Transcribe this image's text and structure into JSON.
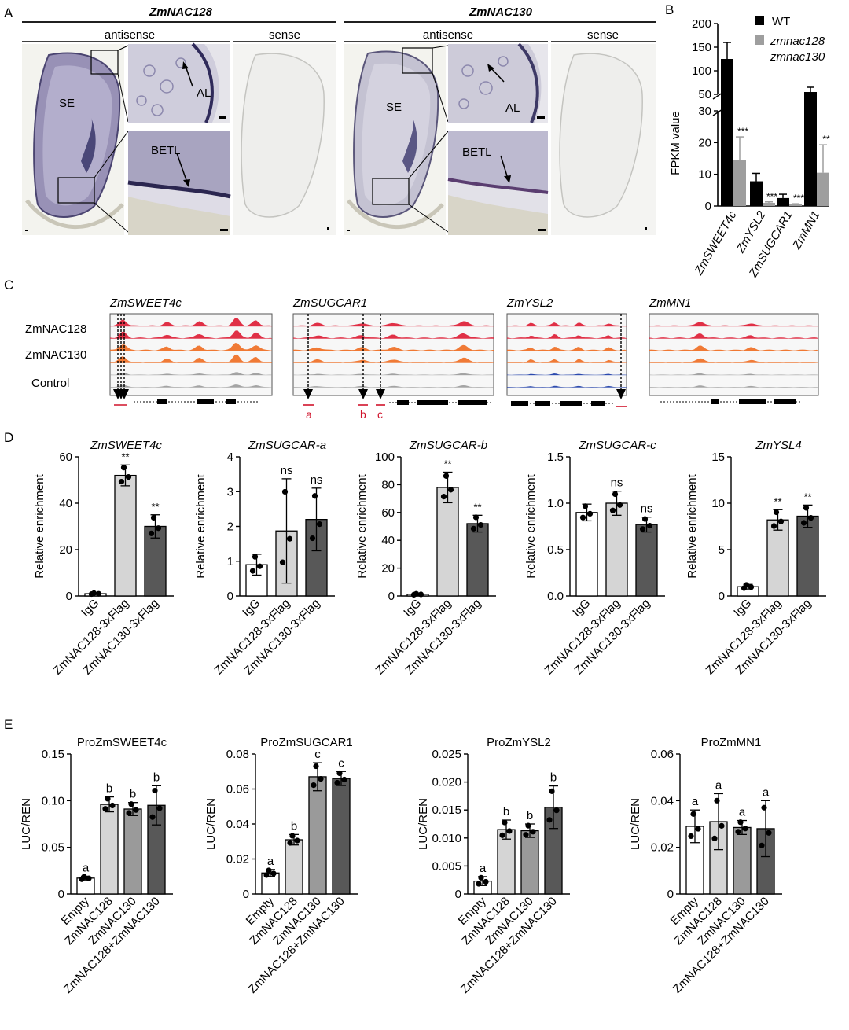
{
  "panelA": {
    "label": "A",
    "groups": [
      {
        "gene": "ZmNAC128",
        "antisense": "antisense",
        "sense": "sense"
      },
      {
        "gene": "ZmNAC130",
        "antisense": "antisense",
        "sense": "sense"
      }
    ],
    "tissue_labels": {
      "se": "SE",
      "al": "AL",
      "betl": "BETL"
    }
  },
  "panelB": {
    "label": "B",
    "ylabel": "FPKM value",
    "legend": [
      {
        "name": "WT",
        "color": "#000000"
      },
      {
        "name": "zmnac128",
        "color": "#9e9e9e"
      },
      {
        "name": "zmnac130",
        "color": ""
      }
    ],
    "chart_data": {
      "type": "bar",
      "categories": [
        "ZmSWEET4c",
        "ZmYSL2",
        "ZmSUGCAR1",
        "ZmMN1"
      ],
      "series": [
        {
          "name": "WT",
          "values": [
            125,
            7.8,
            2.5,
            55
          ],
          "errors": [
            35,
            2.5,
            1.2,
            10
          ]
        },
        {
          "name": "zmnac128 zmnac130",
          "values": [
            14.5,
            1.0,
            0.5,
            10.5
          ],
          "errors": [
            7.3,
            0.3,
            0.2,
            8.8
          ]
        }
      ],
      "significance": [
        "***",
        "***",
        "***",
        "**"
      ],
      "yticks_lower": [
        0,
        10,
        20,
        30
      ],
      "yticks_upper": [
        50,
        100,
        150,
        200
      ],
      "axis_break": [
        30,
        40
      ]
    }
  },
  "panelC": {
    "label": "C",
    "genes": [
      "ZmSWEET4c",
      "ZmSUGCAR1",
      "ZmYSL2",
      "ZmMN1"
    ],
    "tracks": [
      "ZmNAC128",
      "ZmNAC130",
      "Control"
    ],
    "site_labels": [
      "a",
      "b",
      "c"
    ]
  },
  "panelD": {
    "label": "D",
    "ylabel": "Relative enrichment",
    "chart_data": [
      {
        "type": "bar",
        "title": "ZmSWEET4c",
        "categories": [
          "IgG",
          "ZmNAC128-3xFlag",
          "ZmNAC130-3xFlag"
        ],
        "values": [
          1.0,
          52.0,
          30.0
        ],
        "errors": [
          0.3,
          4.5,
          5.0
        ],
        "sig": [
          "",
          "**",
          "**"
        ],
        "ylim": [
          0,
          60
        ],
        "yticks": [
          "0",
          "20",
          "40",
          "60"
        ]
      },
      {
        "type": "bar",
        "title": "ZmSUGCAR-a",
        "categories": [
          "IgG",
          "ZmNAC128-3xFlag",
          "ZmNAC130-3xFlag"
        ],
        "values": [
          0.9,
          1.87,
          2.2
        ],
        "errors": [
          0.3,
          1.5,
          0.9
        ],
        "sig": [
          "",
          "ns",
          "ns"
        ],
        "ylim": [
          0,
          4
        ],
        "yticks": [
          "0",
          "1",
          "2",
          "3",
          "4"
        ]
      },
      {
        "type": "bar",
        "title": "ZmSUGCAR-b",
        "categories": [
          "IgG",
          "ZmNAC128-3xFlag",
          "ZmNAC130-3xFlag"
        ],
        "values": [
          1.2,
          78.0,
          52.0
        ],
        "errors": [
          0.5,
          11.0,
          6.0
        ],
        "sig": [
          "",
          "**",
          "**"
        ],
        "ylim": [
          0,
          100
        ],
        "yticks": [
          "0",
          "20",
          "40",
          "60",
          "80",
          "100"
        ]
      },
      {
        "type": "bar",
        "title": "ZmSUGCAR-c",
        "categories": [
          "IgG",
          "ZmNAC128-3xFlag",
          "ZmNAC130-3xFlag"
        ],
        "values": [
          0.9,
          1.0,
          0.77
        ],
        "errors": [
          0.09,
          0.13,
          0.08
        ],
        "sig": [
          "",
          "ns",
          "ns"
        ],
        "ylim": [
          0,
          1.5
        ],
        "yticks": [
          "0.0",
          "0.5",
          "1.0",
          "1.5"
        ]
      },
      {
        "type": "bar",
        "title": "ZmYSL4",
        "categories": [
          "IgG",
          "ZmNAC128-3xFlag",
          "ZmNAC130-3xFlag"
        ],
        "values": [
          1.0,
          8.2,
          8.6
        ],
        "errors": [
          0.25,
          1.1,
          1.2
        ],
        "sig": [
          "",
          "**",
          "**"
        ],
        "ylim": [
          0,
          15
        ],
        "yticks": [
          "0",
          "5",
          "10",
          "15"
        ]
      }
    ]
  },
  "panelE": {
    "label": "E",
    "ylabel": "LUC/REN",
    "chart_data": [
      {
        "type": "bar",
        "title": "ProZmSWEET4c",
        "categories": [
          "Empty",
          "ZmNAC128",
          "ZmNAC130",
          "ZmNAC128+ZmNAC130"
        ],
        "values": [
          0.017,
          0.096,
          0.091,
          0.095
        ],
        "errors": [
          0.002,
          0.008,
          0.007,
          0.021
        ],
        "letters": [
          "a",
          "b",
          "b",
          "b"
        ],
        "ylim": [
          0,
          0.15
        ],
        "yticks": [
          "0",
          "0.05",
          "0.10",
          "0.15"
        ]
      },
      {
        "type": "bar",
        "title": "ProZmSUGCAR1",
        "categories": [
          "Empty",
          "ZmNAC128",
          "ZmNAC130",
          "ZmNAC128+ZmNAC130"
        ],
        "values": [
          0.012,
          0.031,
          0.067,
          0.066
        ],
        "errors": [
          0.002,
          0.003,
          0.008,
          0.004
        ],
        "letters": [
          "a",
          "b",
          "c",
          "c"
        ],
        "ylim": [
          0,
          0.08
        ],
        "yticks": [
          "0",
          "0.02",
          "0.04",
          "0.06",
          "0.08"
        ]
      },
      {
        "type": "bar",
        "title": "ProZmYSL2",
        "categories": [
          "Empty",
          "ZmNAC128",
          "ZmNAC130",
          "ZmNAC128+ZmNAC130"
        ],
        "values": [
          0.0023,
          0.0115,
          0.0113,
          0.0155
        ],
        "errors": [
          0.0008,
          0.0017,
          0.0012,
          0.0038
        ],
        "letters": [
          "a",
          "b",
          "b",
          "b"
        ],
        "ylim": [
          0,
          0.025
        ],
        "yticks": [
          "0",
          "0.005",
          "0.010",
          "0.015",
          "0.020",
          "0.025"
        ]
      },
      {
        "type": "bar",
        "title": "ProZmMN1",
        "categories": [
          "Empty",
          "ZmNAC128",
          "ZmNAC130",
          "ZmNAC128+ZmNAC130"
        ],
        "values": [
          0.029,
          0.031,
          0.0285,
          0.028
        ],
        "errors": [
          0.007,
          0.012,
          0.003,
          0.012
        ],
        "letters": [
          "a",
          "a",
          "a",
          "a"
        ],
        "ylim": [
          0,
          0.06
        ],
        "yticks": [
          "0",
          "0.02",
          "0.04",
          "0.06"
        ]
      }
    ]
  }
}
